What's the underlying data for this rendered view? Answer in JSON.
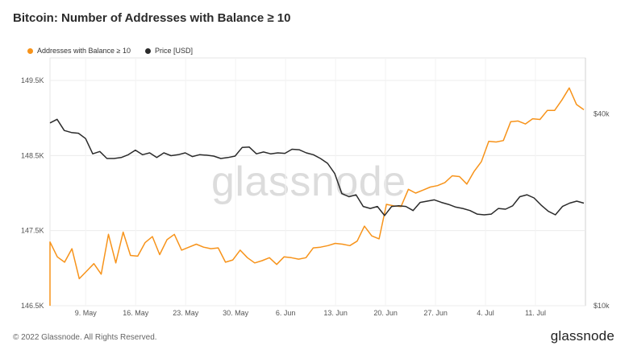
{
  "chart_data": {
    "type": "line",
    "title": "Bitcoin: Number of Addresses with Balance ≥ 10",
    "x_tick_labels": [
      "9. May",
      "16. May",
      "23. May",
      "30. May",
      "6. Jun",
      "13. Jun",
      "20. Jun",
      "27. Jun",
      "4. Jul",
      "11. Jul"
    ],
    "y_left": {
      "ticks": [
        "149.5K",
        "148.5K",
        "147.5K",
        "146.5K"
      ],
      "range": [
        146500,
        149800
      ]
    },
    "y_right": {
      "ticks": [
        "$40k",
        "$10k"
      ],
      "scale": "log",
      "range": [
        10000,
        60000
      ]
    },
    "legend_position": "top-left",
    "grid": true,
    "series": [
      {
        "name": "Addresses with Balance ≥ 10",
        "color": "#f7931a",
        "axis": "left",
        "values": [
          147350,
          147150,
          147080,
          147260,
          146860,
          146960,
          147060,
          146920,
          147450,
          147070,
          147480,
          147170,
          147160,
          147340,
          147420,
          147180,
          147380,
          147450,
          147240,
          147280,
          147320,
          147280,
          147260,
          147270,
          147080,
          147110,
          147240,
          147140,
          147070,
          147100,
          147140,
          147050,
          147150,
          147140,
          147120,
          147140,
          147270,
          147280,
          147300,
          147330,
          147320,
          147300,
          147360,
          147560,
          147430,
          147390,
          147850,
          147830,
          147820,
          148050,
          148000,
          148040,
          148080,
          148100,
          148140,
          148230,
          148220,
          148120,
          148290,
          148420,
          148690,
          148680,
          148700,
          148950,
          148960,
          148920,
          148990,
          148980,
          149100,
          149100,
          149240,
          149400,
          149180,
          149110
        ]
      },
      {
        "name": "Price [USD]",
        "color": "#2b2b2b",
        "axis": "right",
        "values": [
          37500,
          38500,
          35500,
          35000,
          34800,
          33500,
          30000,
          30500,
          29000,
          29000,
          29200,
          29800,
          30800,
          29800,
          30200,
          29200,
          30200,
          29600,
          29800,
          30200,
          29400,
          29800,
          29700,
          29500,
          29000,
          29200,
          29500,
          31400,
          31500,
          30000,
          30400,
          30000,
          30200,
          30100,
          31000,
          30900,
          30200,
          29800,
          29000,
          28000,
          26000,
          22500,
          22000,
          22300,
          20500,
          20200,
          20500,
          19200,
          20500,
          20600,
          20500,
          19900,
          21100,
          21300,
          21500,
          21100,
          20800,
          20400,
          20200,
          19900,
          19400,
          19300,
          19400,
          20200,
          20100,
          20600,
          22000,
          22300,
          21800,
          20700,
          19800,
          19300,
          20500,
          21000,
          21300,
          21000
        ]
      }
    ]
  },
  "footer": {
    "copyright": "© 2022 Glassnode. All Rights Reserved.",
    "logo": "glassnode"
  },
  "watermark": "glassnode"
}
